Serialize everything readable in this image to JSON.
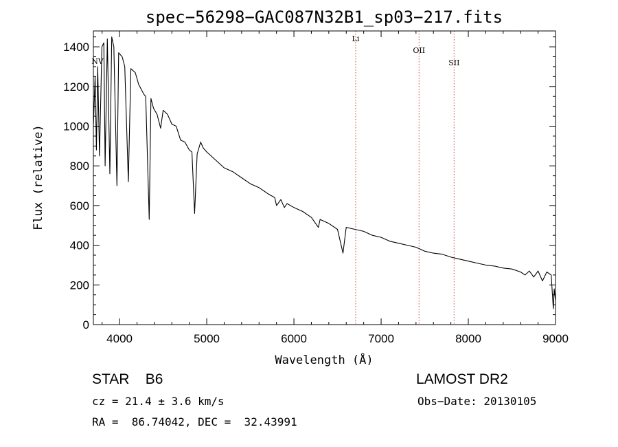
{
  "chart_data": {
    "type": "line",
    "title": "spec−56298−GAC087N32B1_sp03−217.fits",
    "xlabel": "Wavelength (Å)",
    "ylabel": "Flux (relative)",
    "xlim": [
      3700,
      9000
    ],
    "ylim": [
      0,
      1480
    ],
    "xticks": [
      4000,
      5000,
      6000,
      7000,
      8000,
      9000
    ],
    "yticks": [
      0,
      200,
      400,
      600,
      800,
      1000,
      1200,
      1400
    ],
    "grid": false,
    "series": [
      {
        "x": [
          3700,
          3720,
          3735,
          3750,
          3770,
          3798,
          3820,
          3835,
          3860,
          3889,
          3910,
          3935,
          3970,
          3990,
          4030,
          4060,
          4101,
          4130,
          4180,
          4220,
          4280,
          4300,
          4340,
          4360,
          4390,
          4430,
          4471,
          4500,
          4550,
          4600,
          4650,
          4700,
          4750,
          4800,
          4830,
          4861,
          4890,
          4930,
          4960,
          5000,
          5100,
          5200,
          5300,
          5400,
          5500,
          5600,
          5700,
          5780,
          5800,
          5850,
          5890,
          5920,
          6000,
          6100,
          6200,
          6280,
          6300,
          6400,
          6500,
          6563,
          6600,
          6700,
          6800,
          6900,
          7000,
          7100,
          7200,
          7300,
          7400,
          7500,
          7600,
          7700,
          7800,
          7900,
          8000,
          8100,
          8200,
          8300,
          8400,
          8500,
          8600,
          8650,
          8700,
          8750,
          8800,
          8850,
          8900,
          8950,
          8975,
          8985,
          9000
        ],
        "y": [
          1000,
          1250,
          880,
          1300,
          850,
          1400,
          1420,
          800,
          1440,
          760,
          1450,
          1400,
          700,
          1370,
          1350,
          1300,
          720,
          1290,
          1270,
          1210,
          1160,
          1150,
          530,
          1140,
          1090,
          1060,
          990,
          1080,
          1060,
          1010,
          1000,
          930,
          920,
          880,
          870,
          560,
          860,
          920,
          890,
          870,
          830,
          790,
          770,
          740,
          710,
          690,
          660,
          640,
          600,
          630,
          590,
          610,
          590,
          570,
          540,
          490,
          530,
          510,
          480,
          360,
          490,
          480,
          470,
          450,
          440,
          420,
          410,
          400,
          390,
          370,
          360,
          355,
          340,
          330,
          320,
          310,
          300,
          295,
          285,
          280,
          265,
          250,
          270,
          240,
          270,
          220,
          265,
          250,
          80,
          180,
          120
        ]
      }
    ],
    "annotations": [
      {
        "label": "NV",
        "x": 3700,
        "line": false
      },
      {
        "label": "Li",
        "x": 6708,
        "line": true
      },
      {
        "label": "OII",
        "x": 7435,
        "line": true
      },
      {
        "label": "SII",
        "x": 7837,
        "line": true
      }
    ]
  },
  "footer": {
    "object_class": "STAR    B6",
    "velocity": "cz = 21.4 ± 3.6 km/s",
    "coordinates": "RA =  86.74042, DEC =  32.43991",
    "survey": "LAMOST DR2",
    "obs_date": "Obs−Date: 20130105"
  },
  "colors": {
    "line": "#000000",
    "marker_lines": "#d04040",
    "background": "#ffffff"
  }
}
